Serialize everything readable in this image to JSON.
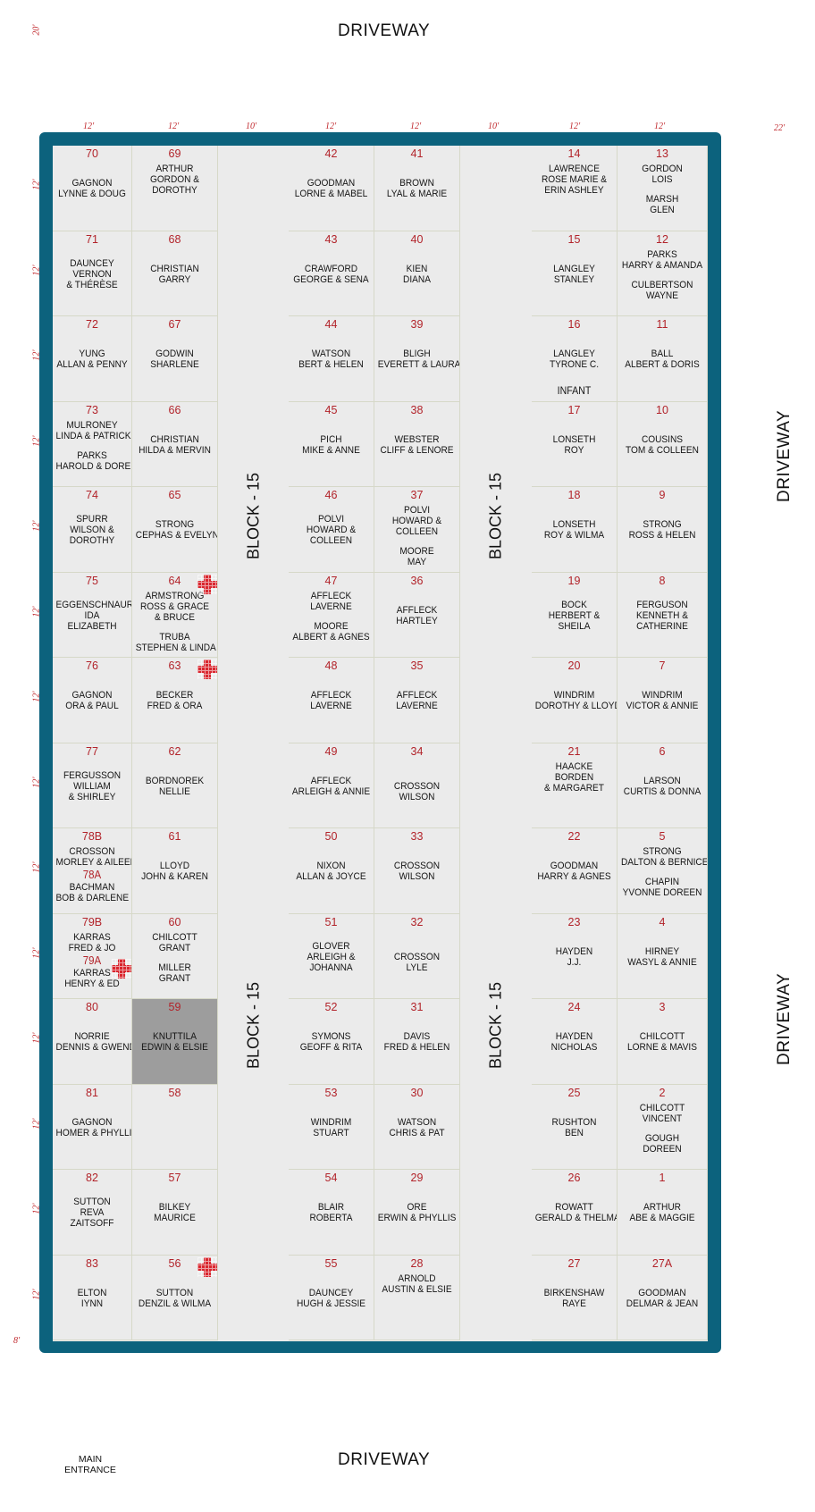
{
  "roads": {
    "top": "DRIVEWAY",
    "bottom": "DRIVEWAY",
    "right_upper": "DRIVEWAY",
    "right_lower": "DRIVEWAY"
  },
  "entrance": [
    "MAIN",
    "ENTRANCE"
  ],
  "block_label": "BLOCK - 15",
  "dimensions": {
    "top_left": "20'",
    "col_widths": [
      "12'",
      "12'",
      "10'",
      "12'",
      "12'",
      "10'",
      "12'",
      "12'"
    ],
    "right": "22'",
    "row_height": "12'",
    "bottom_left": "8'"
  },
  "colors": {
    "frame": "#0c627d",
    "plot_bg": "#ebebeb",
    "number": "#b2232a",
    "cross": "#d9262e",
    "highlight": "#9d9d9d"
  },
  "columns": [
    {
      "lots": [
        {
          "num": "70",
          "names": [
            "GAGNON",
            "LYNNE  &  DOUG"
          ]
        },
        {
          "num": "71",
          "names": [
            "DAUNCEY",
            "VERNON",
            "& THÉRÈSE"
          ]
        },
        {
          "num": "72",
          "names": [
            "YUNG",
            "ALLAN & PENNY"
          ]
        },
        {
          "num": "73",
          "names": [
            "MULRONEY",
            "LINDA & PATRICK",
            "",
            "PARKS",
            "HAROLD & DOREEN"
          ],
          "compact": true
        },
        {
          "num": "74",
          "names": [
            "SPURR",
            "WILSON &",
            "DOROTHY"
          ]
        },
        {
          "num": "75",
          "names": [
            "EGGENSCHNAUR",
            "IDA",
            "ELIZABETH"
          ]
        },
        {
          "num": "76",
          "names": [
            "GAGNON",
            "ORA & PAUL"
          ]
        },
        {
          "num": "77",
          "names": [
            "FERGUSSON",
            "WILLIAM",
            "& SHIRLEY"
          ]
        },
        {
          "num": "78B",
          "names": [
            "CROSSON",
            "MORLEY & AILEEN",
            "#78A",
            "BACHMAN",
            "BOB & DARLENE"
          ],
          "compact": true
        },
        {
          "num": "79B",
          "names": [
            "KARRAS",
            "FRED & JO",
            "#79A",
            "KARRAS",
            "HENRY & ED"
          ],
          "compact": true,
          "cross": true
        },
        {
          "num": "80",
          "names": [
            "NORRIE",
            "DENNIS & GWENDA"
          ]
        },
        {
          "num": "81",
          "names": [
            "GAGNON",
            "HOMER & PHYLLIS"
          ]
        },
        {
          "num": "82",
          "names": [
            "SUTTON",
            "REVA",
            "ZAITSOFF"
          ]
        },
        {
          "num": "83",
          "names": [
            "ELTON",
            "IYNN"
          ]
        }
      ]
    },
    {
      "lots": [
        {
          "num": "69",
          "names": [
            "ARTHUR",
            "GORDON &",
            "DOROTHY"
          ],
          "compact": true
        },
        {
          "num": "68",
          "names": [
            "CHRISTIAN",
            "GARRY"
          ]
        },
        {
          "num": "67",
          "names": [
            "GODWIN",
            "SHARLENE"
          ]
        },
        {
          "num": "66",
          "names": [
            "CHRISTIAN",
            "HILDA & MERVIN"
          ]
        },
        {
          "num": "65",
          "names": [
            "STRONG",
            "CEPHAS & EVELYN"
          ]
        },
        {
          "num": "64",
          "names": [
            "ARMSTRONG",
            "ROSS & GRACE",
            "& BRUCE",
            "",
            "TRUBA",
            "STEPHEN & LINDA"
          ],
          "compact": true,
          "cross": true
        },
        {
          "num": "63",
          "names": [
            "BECKER",
            "FRED & ORA"
          ],
          "cross": true
        },
        {
          "num": "62",
          "names": [
            "BORDNOREK",
            "NELLIE"
          ]
        },
        {
          "num": "61",
          "names": [
            "LLOYD",
            "JOHN & KAREN"
          ]
        },
        {
          "num": "60",
          "names": [
            "CHILCOTT",
            "GRANT",
            "",
            "MILLER",
            "GRANT"
          ],
          "compact": true
        },
        {
          "num": "59",
          "names": [
            "KNUTTILA",
            "EDWIN & ELSIE"
          ],
          "dark": true
        },
        {
          "num": "58",
          "names": []
        },
        {
          "num": "57",
          "names": [
            "BILKEY",
            "MAURICE"
          ]
        },
        {
          "num": "56",
          "names": [
            "SUTTON",
            "DENZIL & WILMA"
          ],
          "cross": true
        }
      ]
    },
    {
      "lots": [
        {
          "num": "42",
          "names": [
            "GOODMAN",
            "LORNE & MABEL"
          ]
        },
        {
          "num": "43",
          "names": [
            "CRAWFORD",
            "GEORGE & SENA"
          ]
        },
        {
          "num": "44",
          "names": [
            "WATSON",
            "BERT & HELEN"
          ]
        },
        {
          "num": "45",
          "names": [
            "PICH",
            "MIKE & ANNE"
          ]
        },
        {
          "num": "46",
          "names": [
            "POLVI",
            "HOWARD &",
            "COLLEEN"
          ]
        },
        {
          "num": "47",
          "names": [
            "AFFLECK",
            "LAVERNE",
            "",
            "MOORE",
            "ALBERT & AGNES"
          ],
          "compact": true
        },
        {
          "num": "48",
          "names": [
            "AFFLECK",
            "LAVERNE"
          ]
        },
        {
          "num": "49",
          "names": [
            "AFFLECK",
            "ARLEIGH & ANNIE"
          ]
        },
        {
          "num": "50",
          "names": [
            "NIXON",
            "ALLAN & JOYCE"
          ]
        },
        {
          "num": "51",
          "names": [
            "GLOVER",
            "ARLEIGH &",
            "JOHANNA"
          ]
        },
        {
          "num": "52",
          "names": [
            "SYMONS",
            "GEOFF & RITA"
          ]
        },
        {
          "num": "53",
          "names": [
            "WINDRIM",
            "STUART"
          ]
        },
        {
          "num": "54",
          "names": [
            "BLAIR",
            "ROBERTA"
          ]
        },
        {
          "num": "55",
          "names": [
            "DAUNCEY",
            "HUGH & JESSIE"
          ]
        }
      ]
    },
    {
      "lots": [
        {
          "num": "41",
          "names": [
            "BROWN",
            "LYAL & MARIE"
          ]
        },
        {
          "num": "40",
          "names": [
            "KIEN",
            "DIANA"
          ]
        },
        {
          "num": "39",
          "names": [
            "BLIGH",
            "EVERETT & LAURA"
          ]
        },
        {
          "num": "38",
          "names": [
            "WEBSTER",
            "CLIFF & LENORE"
          ]
        },
        {
          "num": "37",
          "names": [
            "POLVI",
            "HOWARD &",
            "COLLEEN",
            "",
            "MOORE",
            "MAY"
          ],
          "compact": true
        },
        {
          "num": "36",
          "names": [
            "AFFLECK",
            "HARTLEY"
          ]
        },
        {
          "num": "35",
          "names": [
            "AFFLECK",
            "LAVERNE"
          ]
        },
        {
          "num": "34",
          "names": [
            "CROSSON",
            "WILSON"
          ],
          "low": true
        },
        {
          "num": "33",
          "names": [
            "CROSSON",
            "WILSON"
          ]
        },
        {
          "num": "32",
          "names": [
            "CROSSON",
            "LYLE"
          ],
          "low": true
        },
        {
          "num": "31",
          "names": [
            "DAVIS",
            "FRED & HELEN"
          ]
        },
        {
          "num": "30",
          "names": [
            "WATSON",
            "CHRIS & PAT"
          ]
        },
        {
          "num": "29",
          "names": [
            "ORE",
            "ERWIN & PHYLLIS"
          ]
        },
        {
          "num": "28",
          "names": [
            "ARNOLD",
            "AUSTIN & ELSIE"
          ],
          "compact": true
        }
      ]
    },
    {
      "lots": [
        {
          "num": "14",
          "names": [
            "LAWRENCE",
            "ROSE MARIE &",
            "ERIN ASHLEY"
          ],
          "compact": true
        },
        {
          "num": "15",
          "names": [
            "LANGLEY",
            "STANLEY"
          ]
        },
        {
          "num": "16",
          "names": [
            "LANGLEY",
            "TYRONE C."
          ],
          "infant": "INFANT"
        },
        {
          "num": "17",
          "names": [
            "LONSETH",
            "ROY"
          ]
        },
        {
          "num": "18",
          "names": [
            "LONSETH",
            "ROY & WILMA"
          ]
        },
        {
          "num": "19",
          "names": [
            "BOCK",
            "HERBERT &",
            "SHEILA"
          ]
        },
        {
          "num": "20",
          "names": [
            "WINDRIM",
            "DOROTHY & LLOYD"
          ]
        },
        {
          "num": "21",
          "names": [
            "HAACKE",
            "BORDEN",
            "& MARGARET"
          ],
          "compact": true
        },
        {
          "num": "22",
          "names": [
            "GOODMAN",
            "HARRY & AGNES"
          ]
        },
        {
          "num": "23",
          "names": [
            "HAYDEN",
            "J.J."
          ]
        },
        {
          "num": "24",
          "names": [
            "HAYDEN",
            "NICHOLAS"
          ]
        },
        {
          "num": "25",
          "names": [
            "RUSHTON",
            "BEN"
          ]
        },
        {
          "num": "26",
          "names": [
            "ROWATT",
            "GERALD & THELMA"
          ]
        },
        {
          "num": "27",
          "names": [
            "BIRKENSHAW",
            "RAYE"
          ]
        }
      ]
    },
    {
      "lots": [
        {
          "num": "13",
          "names": [
            "GORDON",
            "LOIS",
            "",
            "MARSH",
            "GLEN"
          ],
          "compact": true
        },
        {
          "num": "12",
          "names": [
            "PARKS",
            "HARRY & AMANDA",
            "",
            "CULBERTSON",
            "WAYNE"
          ],
          "compact": true
        },
        {
          "num": "11",
          "names": [
            "BALL",
            "ALBERT & DORIS"
          ]
        },
        {
          "num": "10",
          "names": [
            "COUSINS",
            "TOM & COLLEEN"
          ]
        },
        {
          "num": "9",
          "names": [
            "STRONG",
            "ROSS & HELEN"
          ]
        },
        {
          "num": "8",
          "names": [
            "FERGUSON",
            "KENNETH &",
            "CATHERINE"
          ]
        },
        {
          "num": "7",
          "names": [
            "WINDRIM",
            "VICTOR & ANNIE"
          ]
        },
        {
          "num": "6",
          "names": [
            "LARSON",
            "CURTIS & DONNA"
          ]
        },
        {
          "num": "5",
          "names": [
            "STRONG",
            "DALTON & BERNICE",
            "",
            "CHAPIN",
            "YVONNE DOREEN"
          ],
          "compact": true
        },
        {
          "num": "4",
          "names": [
            "HIRNEY",
            "WASYL & ANNIE"
          ]
        },
        {
          "num": "3",
          "names": [
            "CHILCOTT",
            "LORNE & MAVIS"
          ]
        },
        {
          "num": "2",
          "names": [
            "CHILCOTT",
            "VINCENT",
            "",
            "GOUGH",
            "DOREEN"
          ],
          "compact": true
        },
        {
          "num": "1",
          "names": [
            "ARTHUR",
            "ABE & MAGGIE"
          ]
        },
        {
          "num": "27A",
          "names": [
            "GOODMAN",
            "DELMAR & JEAN"
          ]
        }
      ]
    }
  ]
}
